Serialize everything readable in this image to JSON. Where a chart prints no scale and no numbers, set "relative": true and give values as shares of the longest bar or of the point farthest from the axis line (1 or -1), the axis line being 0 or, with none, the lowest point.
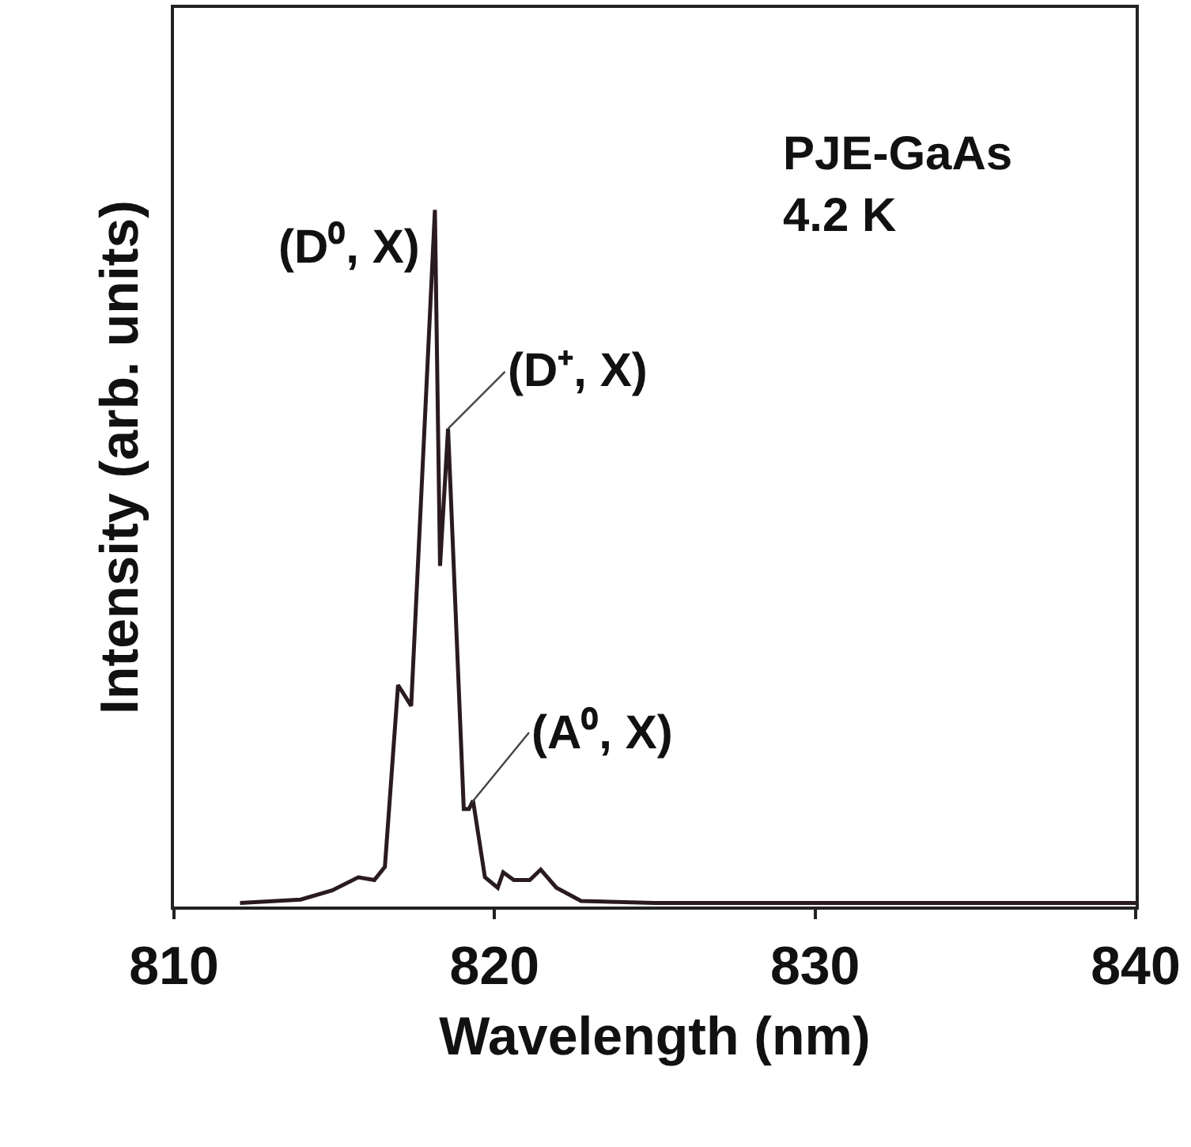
{
  "chart_data": {
    "type": "line",
    "relative": true,
    "xlabel": "Wavelength (nm)",
    "ylabel": "Intensity (arb. units)",
    "xlim": [
      810,
      840
    ],
    "xticks": [
      810,
      820,
      830,
      840
    ],
    "grid": false,
    "marker": "none",
    "line_style": "solid",
    "series": [
      {
        "color": "#2a1a22",
        "x": [
          812.06,
          813.95,
          814.93,
          815.75,
          816.25,
          816.58,
          816.99,
          817.4,
          818.14,
          818.3,
          818.55,
          819.04,
          819.2,
          819.33,
          819.7,
          820.1,
          820.27,
          820.6,
          821.1,
          821.44,
          821.93,
          822.7,
          825,
          830,
          835,
          840
        ],
        "values": [
          0.005,
          0.01,
          0.023,
          0.042,
          0.038,
          0.057,
          0.318,
          0.288,
          1.0,
          0.489,
          0.686,
          0.14,
          0.14,
          0.152,
          0.042,
          0.027,
          0.049,
          0.038,
          0.038,
          0.053,
          0.027,
          0.008,
          0.005,
          0.005,
          0.005,
          0.005
        ]
      }
    ],
    "annotations": [
      {
        "text": "(D⁰, X)",
        "x": 818.14,
        "y": 1.0
      },
      {
        "text": "(D⁺, X)",
        "x": 818.55,
        "y": 0.686
      },
      {
        "text": "(A⁰, X)",
        "x": 819.3,
        "y": 0.15
      },
      "PJE-GaAs\n4.2 K"
    ]
  }
}
